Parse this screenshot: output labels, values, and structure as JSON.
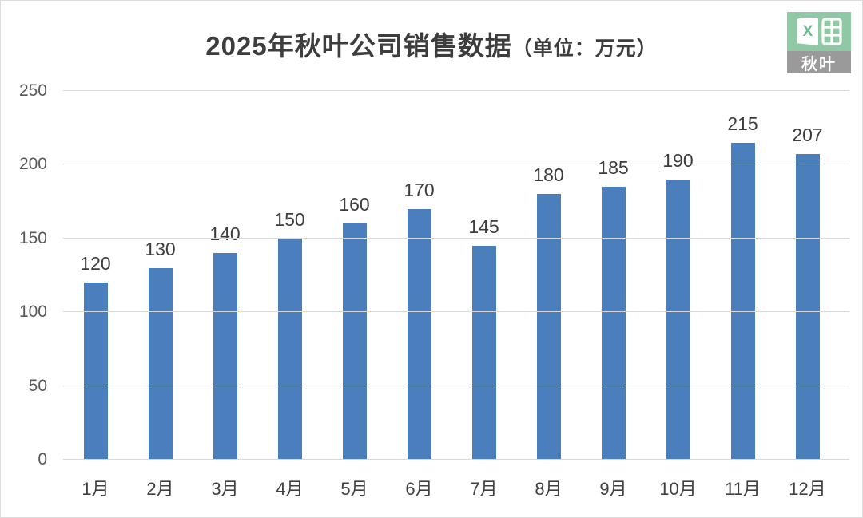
{
  "header": {
    "title_main": "2025年秋叶公司销售数据",
    "title_unit": "（单位：万元）"
  },
  "logo": {
    "badge_text": "秋叶",
    "sheet_letter": "X",
    "green": "#8fc8a4",
    "gray": "#9a9a9a"
  },
  "chart_data": {
    "type": "bar",
    "title": "2025年秋叶公司销售数据（单位：万元）",
    "categories": [
      "1月",
      "2月",
      "3月",
      "4月",
      "5月",
      "6月",
      "7月",
      "8月",
      "9月",
      "10月",
      "11月",
      "12月"
    ],
    "values": [
      120,
      130,
      140,
      150,
      160,
      170,
      145,
      180,
      185,
      190,
      215,
      207
    ],
    "xlabel": "",
    "ylabel": "",
    "ylim": [
      0,
      250
    ],
    "yticks": [
      0,
      50,
      100,
      150,
      200,
      250
    ],
    "grid": "horizontal",
    "legend": "none",
    "bar_color": "#4b7ebc",
    "gridline_color": "#d9d9d9",
    "label_color": "#3d3d3d",
    "tick_color": "#595959"
  }
}
